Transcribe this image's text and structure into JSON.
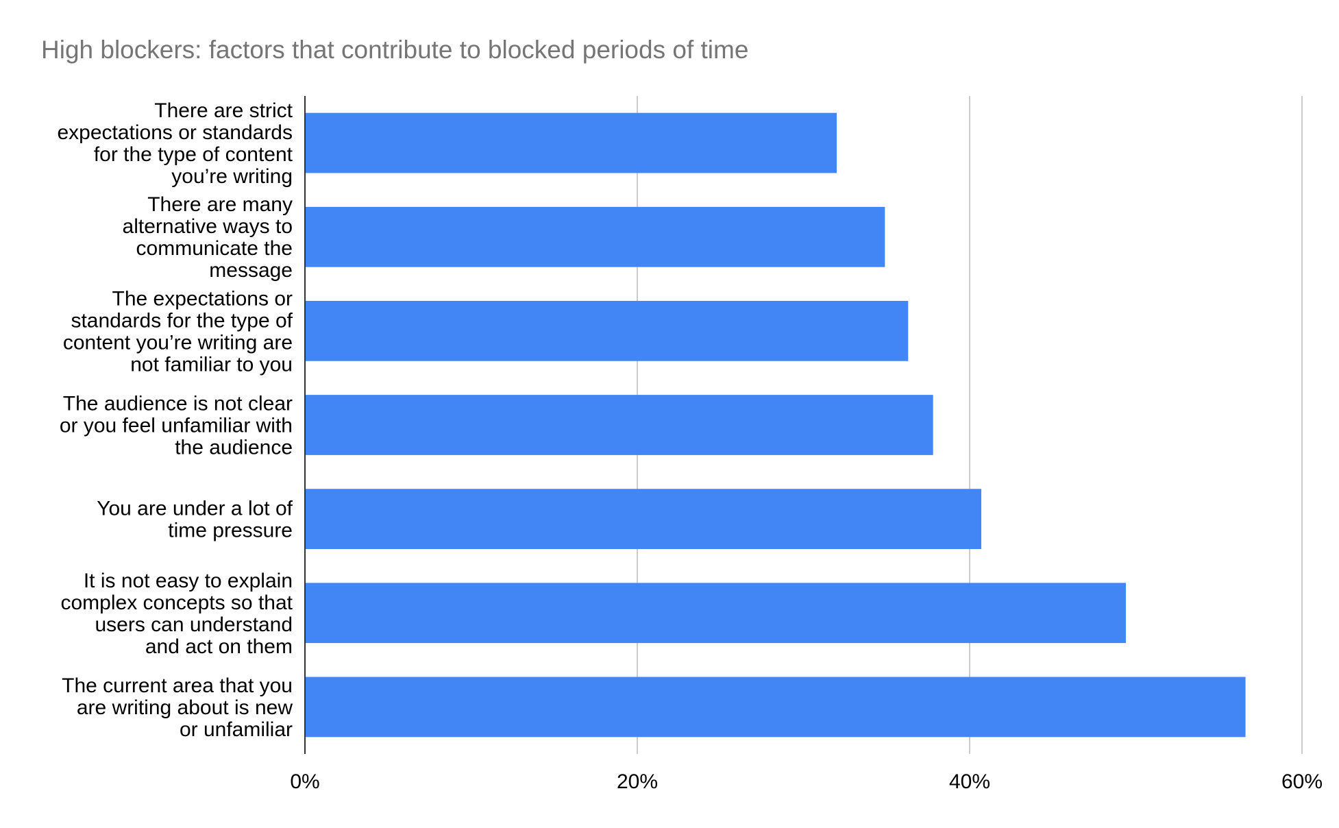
{
  "chart_data": {
    "type": "bar",
    "orientation": "horizontal",
    "title": "High blockers: factors that contribute to blocked periods of time",
    "categories": [
      [
        "There are strict",
        "expectations or standards",
        "for the type of content",
        "you’re writing"
      ],
      [
        "There are many",
        "alternative ways to",
        "communicate the",
        "message"
      ],
      [
        "The expectations or",
        "standards for the type of",
        "content you’re writing are",
        "not familiar to you"
      ],
      [
        "The audience is not clear",
        "or you feel unfamiliar with",
        "the audience"
      ],
      [
        "You are under a lot of",
        "time pressure"
      ],
      [
        "It is not easy to explain",
        "complex concepts so that",
        "users can understand",
        "and act on them"
      ],
      [
        "The current area that you",
        "are writing about is new",
        "or unfamiliar"
      ]
    ],
    "values": [
      32,
      34.9,
      36.3,
      37.8,
      40.7,
      49.4,
      56.6
    ],
    "value_format": "percent",
    "xlim": [
      0,
      60
    ],
    "xticks": [
      0,
      20,
      40,
      60
    ],
    "xtick_labels": [
      "0%",
      "20%",
      "40%",
      "60%"
    ],
    "grid": "vertical",
    "bar_color": "#4285f4",
    "grid_color": "#cccccc",
    "title_color": "#757575"
  }
}
